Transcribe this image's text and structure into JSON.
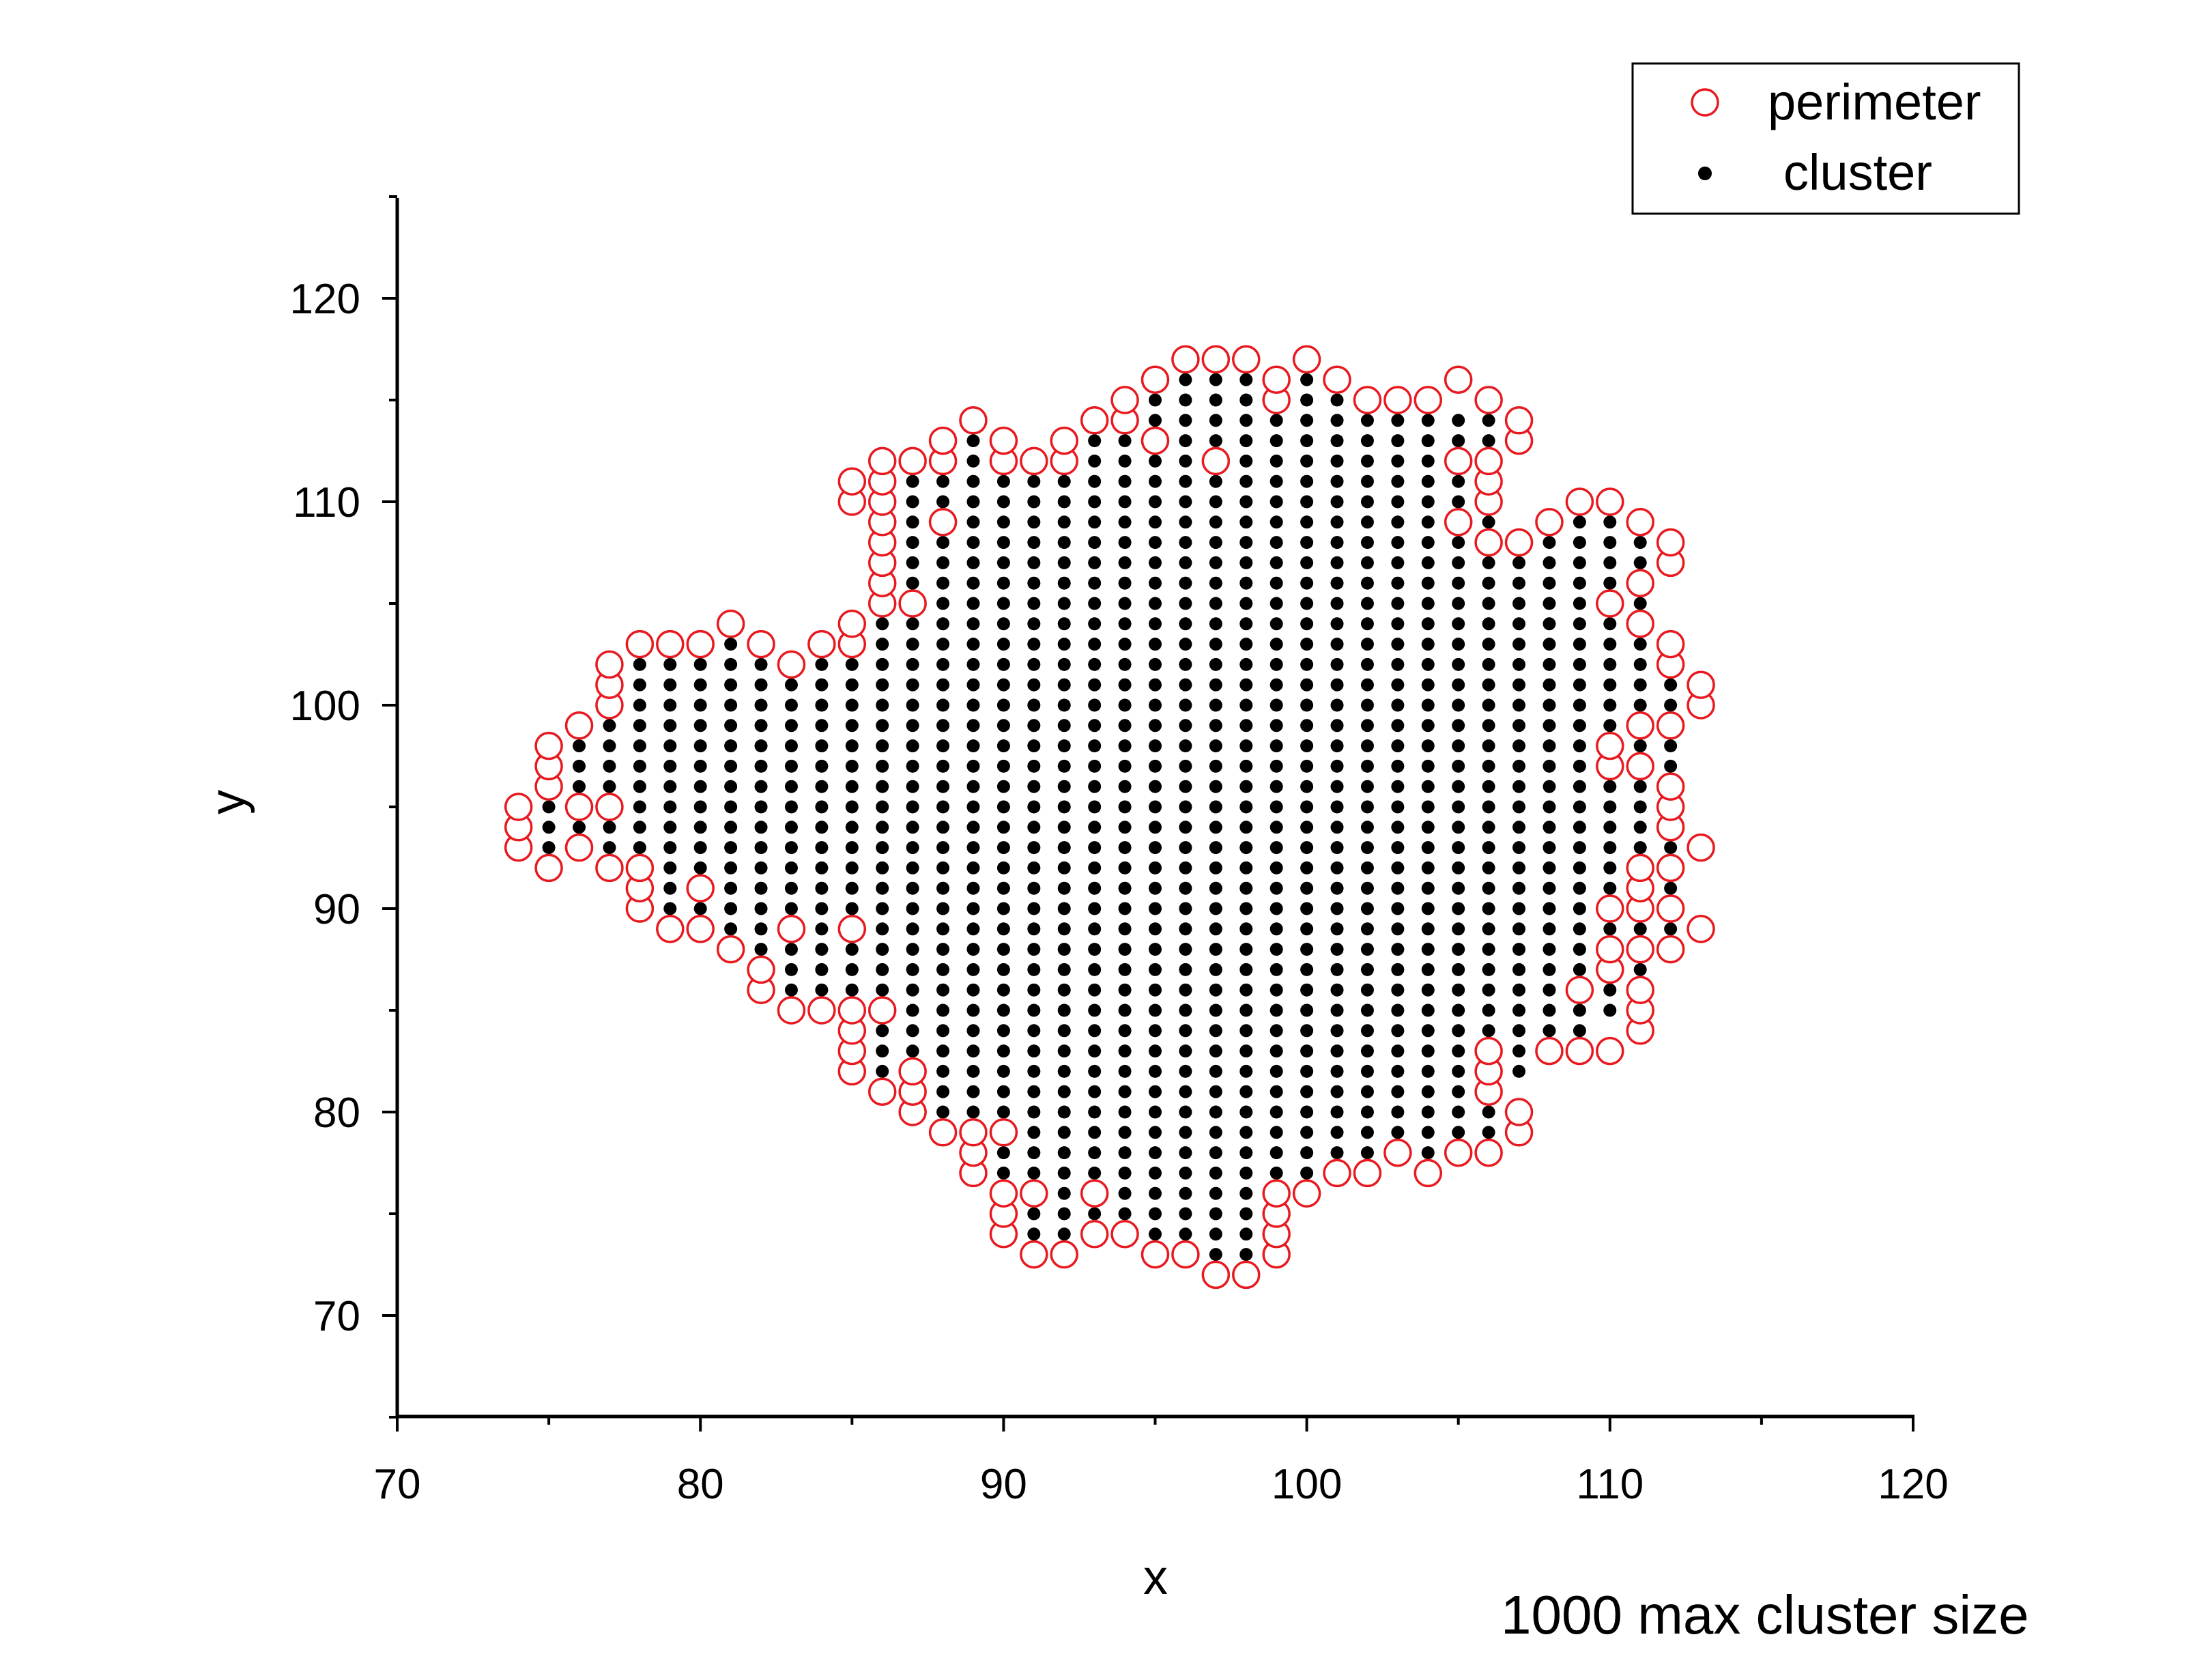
{
  "chart_data": {
    "type": "scatter",
    "title": "",
    "xlabel": "x",
    "ylabel": "y",
    "xlim": [
      70,
      120
    ],
    "ylim": [
      65,
      125
    ],
    "x_ticks": [
      "70",
      "80",
      "90",
      "100",
      "110",
      "120"
    ],
    "y_ticks": [
      "70",
      "80",
      "90",
      "100",
      "110",
      "120"
    ],
    "grid": false,
    "legend_position": "top-right",
    "caption": "1000 max cluster size",
    "colors": {
      "perimeter": "#e8191f",
      "cluster": "#000000",
      "axis": "#000000"
    },
    "legend": [
      "perimeter",
      "cluster"
    ],
    "cluster_columns": [
      [
        75,
        93,
        95
      ],
      [
        76,
        94,
        98
      ],
      [
        77,
        93,
        99
      ],
      [
        78,
        91,
        102
      ],
      [
        79,
        90,
        102
      ],
      [
        80,
        89,
        102
      ],
      [
        81,
        89,
        103
      ],
      [
        82,
        88,
        102
      ],
      [
        83,
        86,
        101
      ],
      [
        84,
        86,
        102
      ],
      [
        85,
        86,
        102
      ],
      [
        86,
        82,
        111
      ],
      [
        87,
        81,
        111
      ],
      [
        88,
        80,
        111
      ],
      [
        89,
        80,
        113
      ],
      [
        90,
        77,
        112
      ],
      [
        91,
        74,
        111
      ],
      [
        92,
        74,
        112
      ],
      [
        93,
        75,
        113
      ],
      [
        94,
        75,
        114
      ],
      [
        95,
        74,
        115
      ],
      [
        96,
        73,
        116
      ],
      [
        97,
        73,
        116
      ],
      [
        98,
        73,
        116
      ],
      [
        99,
        77,
        115
      ],
      [
        100,
        77,
        116
      ],
      [
        101,
        78,
        115
      ],
      [
        102,
        78,
        114
      ],
      [
        103,
        79,
        114
      ],
      [
        104,
        78,
        115
      ],
      [
        105,
        79,
        114
      ],
      [
        106,
        79,
        114
      ],
      [
        107,
        82,
        107
      ],
      [
        108,
        84,
        108
      ],
      [
        109,
        84,
        109
      ],
      [
        110,
        85,
        109
      ],
      [
        111,
        87,
        108
      ],
      [
        112,
        89,
        101
      ]
    ],
    "perimeter_points": [
      [
        74,
        93
      ],
      [
        74,
        94
      ],
      [
        74,
        95
      ],
      [
        75,
        92
      ],
      [
        75,
        96
      ],
      [
        75,
        97
      ],
      [
        75,
        98
      ],
      [
        76,
        93
      ],
      [
        76,
        95
      ],
      [
        76,
        99
      ],
      [
        77,
        92
      ],
      [
        77,
        95
      ],
      [
        77,
        100
      ],
      [
        77,
        101
      ],
      [
        77,
        102
      ],
      [
        78,
        90
      ],
      [
        78,
        91
      ],
      [
        78,
        92
      ],
      [
        78,
        103
      ],
      [
        79,
        89
      ],
      [
        79,
        103
      ],
      [
        80,
        89
      ],
      [
        80,
        91
      ],
      [
        80,
        103
      ],
      [
        81,
        88
      ],
      [
        81,
        104
      ],
      [
        82,
        86
      ],
      [
        82,
        87
      ],
      [
        82,
        103
      ],
      [
        83,
        85
      ],
      [
        83,
        89
      ],
      [
        83,
        102
      ],
      [
        84,
        85
      ],
      [
        84,
        103
      ],
      [
        85,
        82
      ],
      [
        85,
        83
      ],
      [
        85,
        84
      ],
      [
        85,
        85
      ],
      [
        85,
        89
      ],
      [
        85,
        103
      ],
      [
        85,
        104
      ],
      [
        85,
        110
      ],
      [
        85,
        111
      ],
      [
        86,
        81
      ],
      [
        86,
        85
      ],
      [
        86,
        105
      ],
      [
        86,
        106
      ],
      [
        86,
        107
      ],
      [
        86,
        108
      ],
      [
        86,
        109
      ],
      [
        86,
        110
      ],
      [
        86,
        111
      ],
      [
        86,
        112
      ],
      [
        87,
        80
      ],
      [
        87,
        81
      ],
      [
        87,
        82
      ],
      [
        87,
        105
      ],
      [
        87,
        112
      ],
      [
        88,
        79
      ],
      [
        88,
        109
      ],
      [
        88,
        112
      ],
      [
        88,
        113
      ],
      [
        89,
        77
      ],
      [
        89,
        78
      ],
      [
        89,
        79
      ],
      [
        89,
        114
      ],
      [
        90,
        74
      ],
      [
        90,
        75
      ],
      [
        90,
        76
      ],
      [
        90,
        79
      ],
      [
        90,
        112
      ],
      [
        90,
        113
      ],
      [
        91,
        73
      ],
      [
        91,
        76
      ],
      [
        91,
        112
      ],
      [
        92,
        73
      ],
      [
        92,
        112
      ],
      [
        92,
        113
      ],
      [
        93,
        74
      ],
      [
        93,
        76
      ],
      [
        93,
        114
      ],
      [
        94,
        74
      ],
      [
        94,
        114
      ],
      [
        94,
        115
      ],
      [
        95,
        73
      ],
      [
        95,
        113
      ],
      [
        95,
        116
      ],
      [
        96,
        73
      ],
      [
        96,
        117
      ],
      [
        97,
        72
      ],
      [
        97,
        112
      ],
      [
        97,
        117
      ],
      [
        98,
        72
      ],
      [
        98,
        117
      ],
      [
        99,
        73
      ],
      [
        99,
        74
      ],
      [
        99,
        75
      ],
      [
        99,
        76
      ],
      [
        99,
        115
      ],
      [
        99,
        116
      ],
      [
        100,
        76
      ],
      [
        100,
        117
      ],
      [
        101,
        77
      ],
      [
        101,
        116
      ],
      [
        102,
        77
      ],
      [
        102,
        115
      ],
      [
        103,
        78
      ],
      [
        103,
        115
      ],
      [
        104,
        77
      ],
      [
        104,
        115
      ],
      [
        105,
        78
      ],
      [
        105,
        109
      ],
      [
        105,
        112
      ],
      [
        105,
        116
      ],
      [
        106,
        78
      ],
      [
        106,
        81
      ],
      [
        106,
        82
      ],
      [
        106,
        83
      ],
      [
        106,
        108
      ],
      [
        106,
        110
      ],
      [
        106,
        111
      ],
      [
        106,
        112
      ],
      [
        106,
        115
      ],
      [
        107,
        79
      ],
      [
        107,
        80
      ],
      [
        107,
        108
      ],
      [
        107,
        113
      ],
      [
        107,
        114
      ],
      [
        108,
        83
      ],
      [
        108,
        109
      ],
      [
        109,
        83
      ],
      [
        109,
        86
      ],
      [
        109,
        110
      ],
      [
        110,
        83
      ],
      [
        110,
        87
      ],
      [
        110,
        88
      ],
      [
        110,
        90
      ],
      [
        110,
        97
      ],
      [
        110,
        98
      ],
      [
        110,
        105
      ],
      [
        110,
        110
      ],
      [
        111,
        84
      ],
      [
        111,
        85
      ],
      [
        111,
        86
      ],
      [
        111,
        88
      ],
      [
        111,
        90
      ],
      [
        111,
        91
      ],
      [
        111,
        92
      ],
      [
        111,
        97
      ],
      [
        111,
        99
      ],
      [
        111,
        104
      ],
      [
        111,
        106
      ],
      [
        111,
        109
      ],
      [
        112,
        88
      ],
      [
        112,
        90
      ],
      [
        112,
        92
      ],
      [
        112,
        94
      ],
      [
        112,
        95
      ],
      [
        112,
        96
      ],
      [
        112,
        99
      ],
      [
        112,
        102
      ],
      [
        112,
        103
      ],
      [
        112,
        107
      ],
      [
        112,
        108
      ],
      [
        113,
        89
      ],
      [
        113,
        93
      ],
      [
        113,
        100
      ],
      [
        113,
        101
      ]
    ]
  }
}
